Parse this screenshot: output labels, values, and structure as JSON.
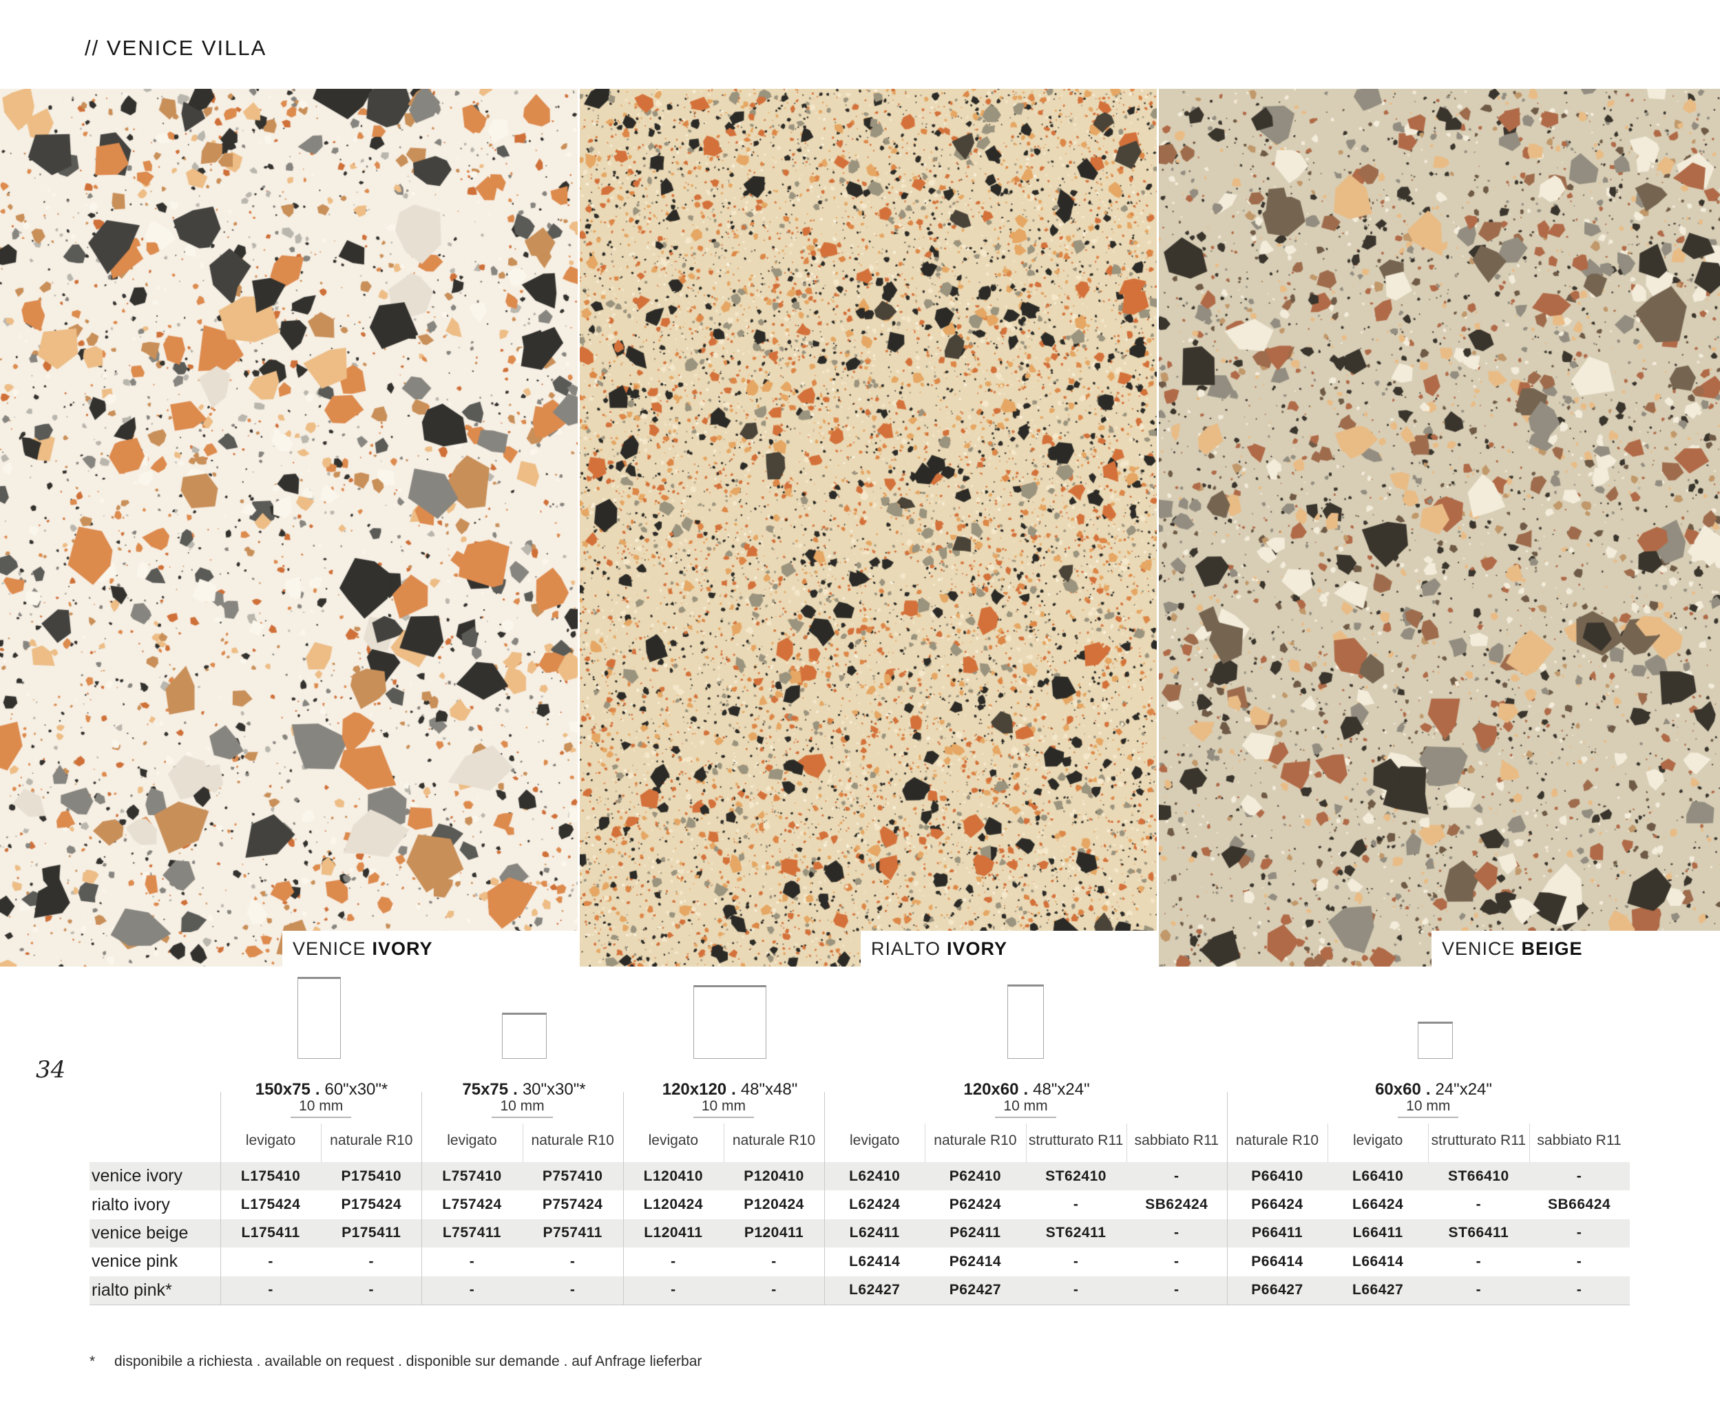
{
  "page": {
    "title": "// VENICE VILLA",
    "page_number": "34",
    "footnote_symbol": "*",
    "footnote": "disponibile a richiesta . available on request . disponible sur demande . auf Anfrage lieferbar"
  },
  "size_separator": ".",
  "swatches": [
    {
      "series": "VENICE",
      "variant": "IVORY",
      "texture": {
        "base": "#f6efe4",
        "seed": 11,
        "layers": [
          {
            "count": 2000,
            "rmin": 1.2,
            "rmax": 4,
            "colors": [
              "#dd8a4d",
              "#32312d",
              "#87857f",
              "#c98f58",
              "#faf6ec",
              "#32312d",
              "#cf7038",
              "#b9b6ae"
            ]
          },
          {
            "count": 700,
            "rmin": 4,
            "rmax": 10,
            "colors": [
              "#dd8a4d",
              "#32312d",
              "#87857f",
              "#edbd85",
              "#faf6ec",
              "#cf7038",
              "#b9b6ae",
              "#c98f58"
            ]
          },
          {
            "count": 230,
            "rmin": 10,
            "rmax": 24,
            "colors": [
              "#dd8a4d",
              "#edbd85",
              "#32312d",
              "#87857f",
              "#faf6ec",
              "#c98f58",
              "#5a5a56"
            ]
          },
          {
            "count": 85,
            "rmin": 24,
            "rmax": 54,
            "colors": [
              "#edbd85",
              "#dd8a4d",
              "#32312d",
              "#87857f",
              "#e7dfd2",
              "#c98f58",
              "#43423e"
            ]
          }
        ]
      }
    },
    {
      "series": "RIALTO",
      "variant": "IVORY",
      "texture": {
        "base": "#ead9b6",
        "seed": 22,
        "layers": [
          {
            "count": 9500,
            "rmin": 1,
            "rmax": 3.2,
            "colors": [
              "#d4713a",
              "#2b2a26",
              "#f4e7ca",
              "#d4713a",
              "#9a937e",
              "#f9f2dd",
              "#e5a763",
              "#2b2a26"
            ]
          },
          {
            "count": 2400,
            "rmin": 3,
            "rmax": 7,
            "colors": [
              "#d4713a",
              "#2b2a26",
              "#e5a763",
              "#f4e7ca",
              "#9a937e",
              "#dd8747"
            ]
          },
          {
            "count": 380,
            "rmin": 7,
            "rmax": 14,
            "colors": [
              "#d4713a",
              "#2b2a26",
              "#e5a763",
              "#9a937e",
              "#2b2a26"
            ]
          },
          {
            "count": 80,
            "rmin": 14,
            "rmax": 24,
            "colors": [
              "#2b2a26",
              "#d4713a",
              "#2b2a26",
              "#4a4338"
            ]
          }
        ]
      }
    },
    {
      "series": "VENICE",
      "variant": "BEIGE",
      "texture": {
        "base": "#d8ceb6",
        "seed": 33,
        "layers": [
          {
            "count": 3000,
            "rmin": 1.2,
            "rmax": 4,
            "colors": [
              "#39342c",
              "#6e5a46",
              "#b06a47",
              "#e9bc86",
              "#f3ecda",
              "#928d80",
              "#39342c"
            ]
          },
          {
            "count": 1000,
            "rmin": 4,
            "rmax": 9,
            "colors": [
              "#39342c",
              "#6e5a46",
              "#b06a47",
              "#e9bc86",
              "#f3ecda",
              "#928d80",
              "#c0986a"
            ]
          },
          {
            "count": 280,
            "rmin": 9,
            "rmax": 20,
            "colors": [
              "#b06a47",
              "#e9bc86",
              "#39342c",
              "#f3ecda",
              "#928d80",
              "#9e6c4c"
            ]
          },
          {
            "count": 100,
            "rmin": 20,
            "rmax": 44,
            "colors": [
              "#39342c",
              "#b06a47",
              "#e9bc86",
              "#756450",
              "#928d80",
              "#f3ecda"
            ]
          }
        ]
      }
    }
  ],
  "sizes": [
    {
      "cm": "150x75",
      "inch": "60\"x30\"*"
    },
    {
      "cm": "75x75",
      "inch": "30\"x30\"*"
    },
    {
      "cm": "120x120",
      "inch": "48\"x48\""
    },
    {
      "cm": "120x60",
      "inch": "48\"x24\""
    },
    {
      "cm": "60x60",
      "inch": "24\"x24\""
    }
  ],
  "table": {
    "thickness_label": "10 mm",
    "groups": [
      {
        "size": "150x75",
        "finishes": [
          "levigato",
          "naturale R10"
        ]
      },
      {
        "size": "75x75",
        "finishes": [
          "levigato",
          "naturale R10"
        ]
      },
      {
        "size": "120x120",
        "finishes": [
          "levigato",
          "naturale R10"
        ]
      },
      {
        "size": "120x60",
        "finishes": [
          "levigato",
          "naturale R10",
          "strutturato R11",
          "sabbiato R11"
        ]
      },
      {
        "size": "60x60",
        "finishes": [
          "naturale R10",
          "levigato",
          "strutturato R11",
          "sabbiato R11"
        ]
      }
    ],
    "rows": [
      {
        "label": "venice ivory",
        "codes": [
          "L175410",
          "P175410",
          "L757410",
          "P757410",
          "L120410",
          "P120410",
          "L62410",
          "P62410",
          "ST62410",
          "-",
          "P66410",
          "L66410",
          "ST66410",
          "-"
        ]
      },
      {
        "label": "rialto ivory",
        "codes": [
          "L175424",
          "P175424",
          "L757424",
          "P757424",
          "L120424",
          "P120424",
          "L62424",
          "P62424",
          "-",
          "SB62424",
          "P66424",
          "L66424",
          "-",
          "SB66424"
        ]
      },
      {
        "label": "venice beige",
        "codes": [
          "L175411",
          "P175411",
          "L757411",
          "P757411",
          "L120411",
          "P120411",
          "L62411",
          "P62411",
          "ST62411",
          "-",
          "P66411",
          "L66411",
          "ST66411",
          "-"
        ]
      },
      {
        "label": "venice pink",
        "codes": [
          "-",
          "-",
          "-",
          "-",
          "-",
          "-",
          "L62414",
          "P62414",
          "-",
          "-",
          "P66414",
          "L66414",
          "-",
          "-"
        ]
      },
      {
        "label": "rialto pink*",
        "codes": [
          "-",
          "-",
          "-",
          "-",
          "-",
          "-",
          "L62427",
          "P62427",
          "-",
          "-",
          "P66427",
          "L66427",
          "-",
          "-"
        ]
      }
    ]
  }
}
